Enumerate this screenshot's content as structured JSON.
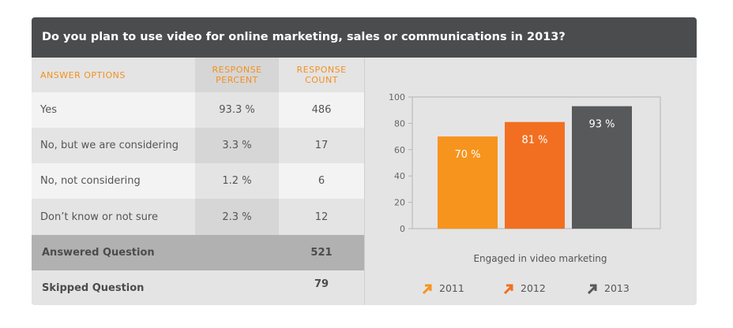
{
  "header": {
    "title": "Do you plan to use video for online marketing, sales or communications in 2013?"
  },
  "table": {
    "columns": [
      "ANSWER OPTIONS",
      "RESPONSE PERCENT",
      "RESPONSE COUNT"
    ],
    "rows": [
      {
        "option": "Yes",
        "percent": "93.3 %",
        "count": "486"
      },
      {
        "option": "No, but we are considering",
        "percent": "3.3 %",
        "count": "17"
      },
      {
        "option": "No, not considering",
        "percent": "1.2 %",
        "count": "6"
      },
      {
        "option": "Don’t know or not sure",
        "percent": "2.3 %",
        "count": "12"
      }
    ],
    "answered": {
      "label": "Answered Question",
      "count": "521"
    },
    "skipped": {
      "label": "Skipped Question",
      "count": "79"
    }
  },
  "chart_data": {
    "type": "bar",
    "categories": [
      "2011",
      "2012",
      "2013"
    ],
    "values": [
      70,
      81,
      93
    ],
    "data_labels": [
      "70 %",
      "81 %",
      "93 %"
    ],
    "xlabel": "Engaged in video marketing",
    "ylabel": "",
    "ylim": [
      0,
      100
    ],
    "yticks": [
      0,
      20,
      40,
      60,
      80,
      100
    ],
    "grid": false,
    "legend": [
      "2011",
      "2012",
      "2013"
    ],
    "legend_position": "bottom",
    "colors": [
      "#f7941d",
      "#f26f21",
      "#58595b"
    ]
  },
  "colors": {
    "header_bg": "#4b4c4e",
    "accent": "#f3901d",
    "row_light": "#f3f3f3",
    "row_dark": "#e4e4e4",
    "percent_light": "#e4e4e4",
    "percent_dark": "#d6d6d6",
    "answered_bg": "#b1b1b1"
  },
  "legend_icon": "arrow-up-right-icon"
}
